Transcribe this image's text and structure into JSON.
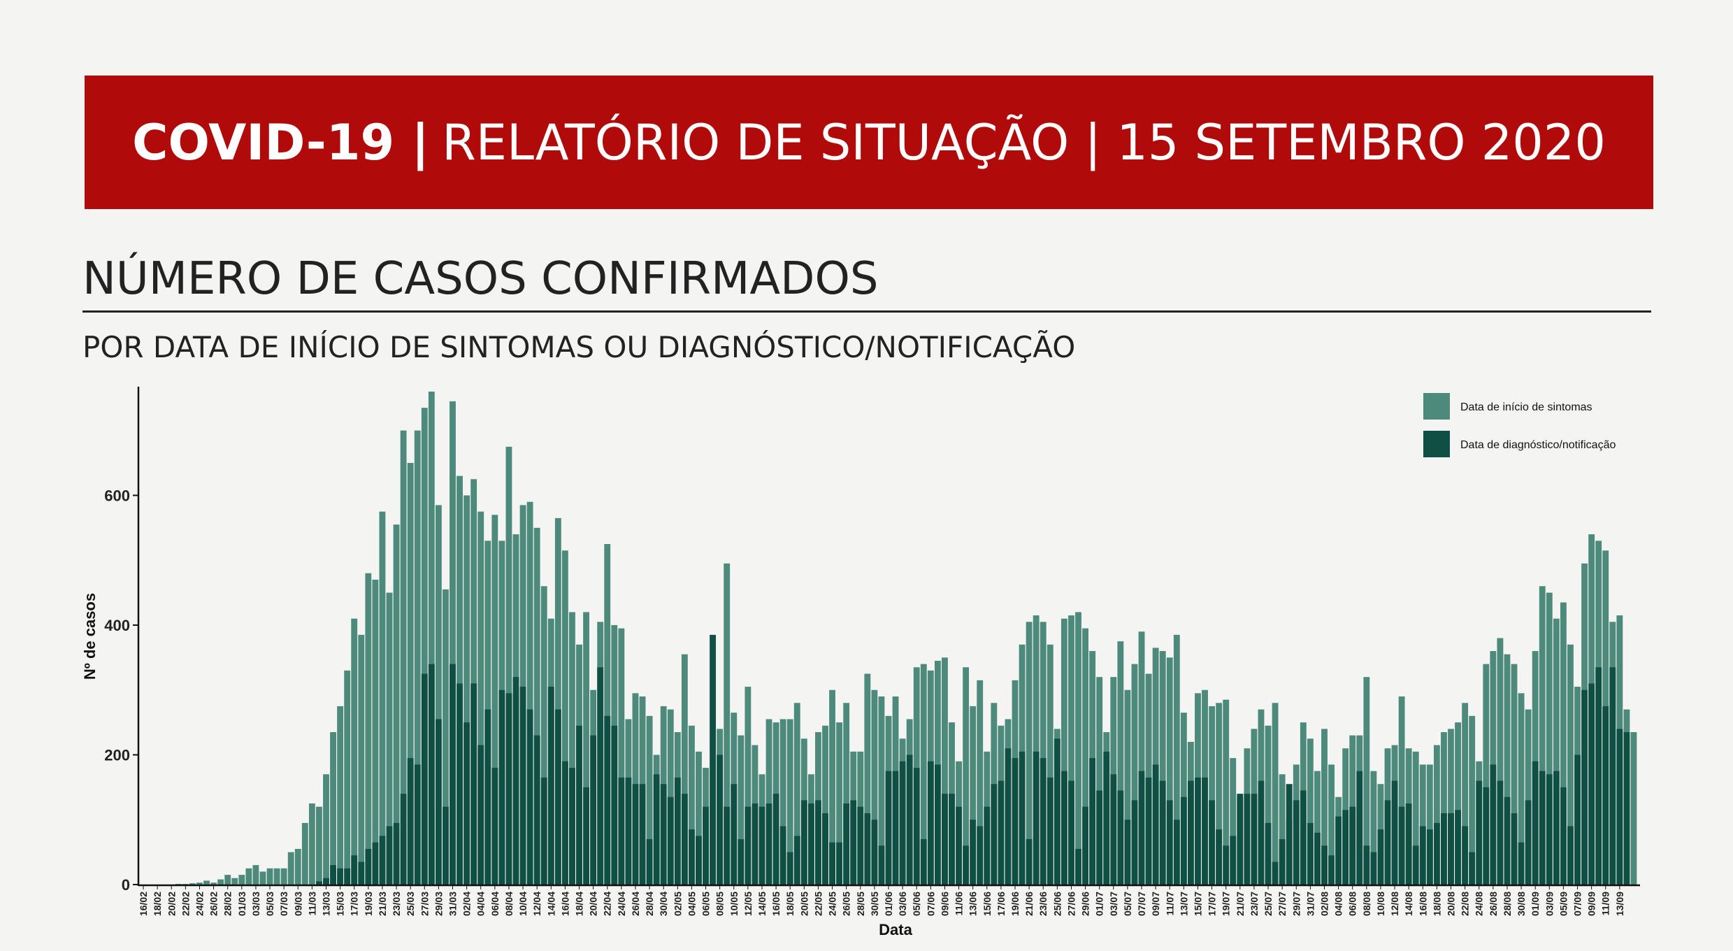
{
  "banner": {
    "bold": "COVID-19 |",
    "rest": "RELATÓRIO DE SITUAÇÃO | 15 SETEMBRO 2020"
  },
  "section": {
    "title": "NÚMERO DE CASOS CONFIRMADOS",
    "subtitle": "POR DATA DE INÍCIO DE SINTOMAS OU DIAGNÓSTICO/NOTIFICAÇÃO"
  },
  "chart_data": {
    "type": "bar",
    "stacked": false,
    "xlabel": "Data",
    "ylabel": "Nº de casos",
    "ylim": [
      0,
      760
    ],
    "yticks": [
      0,
      200,
      400,
      600
    ],
    "legend_position": "top-right",
    "date_ticks": [
      "16/02",
      "18/02",
      "20/02",
      "22/02",
      "24/02",
      "26/02",
      "28/02",
      "01/03",
      "03/03",
      "05/03",
      "07/03",
      "09/03",
      "11/03",
      "13/03",
      "15/03",
      "17/03",
      "19/03",
      "21/03",
      "23/03",
      "25/03",
      "27/03",
      "29/03",
      "31/03",
      "02/04",
      "04/04",
      "06/04",
      "08/04",
      "10/04",
      "12/04",
      "14/04",
      "16/04",
      "18/04",
      "20/04",
      "22/04",
      "24/04",
      "26/04",
      "28/04",
      "30/04",
      "02/05",
      "04/05",
      "06/05",
      "08/05",
      "10/05",
      "12/05",
      "14/05",
      "16/05",
      "18/05",
      "20/05",
      "22/05",
      "24/05",
      "26/05",
      "28/05",
      "30/05",
      "01/06",
      "03/06",
      "05/06",
      "07/06",
      "09/06",
      "11/06",
      "13/06",
      "15/06",
      "17/06",
      "19/06",
      "21/06",
      "23/06",
      "25/06",
      "27/06",
      "29/06",
      "01/07",
      "03/07",
      "05/07",
      "07/07",
      "09/07",
      "11/07",
      "13/07",
      "15/07",
      "17/07",
      "19/07",
      "21/07",
      "23/07",
      "25/07",
      "27/07",
      "29/07",
      "31/07",
      "02/08",
      "04/08",
      "06/08",
      "08/08",
      "10/08",
      "12/08",
      "14/08",
      "16/08",
      "18/08",
      "20/08",
      "22/08",
      "24/08",
      "26/08",
      "28/08",
      "30/08",
      "01/09",
      "03/09",
      "05/09",
      "07/09",
      "09/09",
      "11/09",
      "13/09"
    ],
    "series": [
      {
        "name": "Data de início de sintomas",
        "color": "#4e8a7b",
        "values": [
          0,
          0,
          0,
          0,
          0,
          1,
          1,
          2,
          3,
          6,
          3,
          8,
          15,
          10,
          15,
          25,
          30,
          20,
          25,
          25,
          25,
          50,
          55,
          95,
          125,
          120,
          170,
          235,
          275,
          330,
          410,
          385,
          480,
          470,
          575,
          450,
          555,
          700,
          650,
          700,
          735,
          760,
          585,
          455,
          745,
          630,
          600,
          625,
          575,
          530,
          570,
          530,
          675,
          540,
          585,
          590,
          550,
          460,
          410,
          565,
          515,
          420,
          370,
          420,
          300,
          405,
          525,
          400,
          395,
          255,
          295,
          290,
          260,
          200,
          275,
          270,
          235,
          355,
          245,
          205,
          180,
          175,
          240,
          495,
          265,
          230,
          305,
          215,
          170,
          255,
          250,
          255,
          255,
          280,
          225,
          170,
          235,
          245,
          300,
          250,
          280,
          205,
          205,
          325,
          300,
          290,
          260,
          290,
          225,
          255,
          335,
          340,
          330,
          345,
          350,
          250,
          190,
          335,
          275,
          315,
          205,
          280,
          245,
          255,
          315,
          370,
          405,
          415,
          405,
          370,
          240,
          410,
          415,
          420,
          395,
          360,
          320,
          235,
          320,
          375,
          300,
          340,
          390,
          325,
          365,
          360,
          350,
          385,
          265,
          220,
          295,
          300,
          275,
          280,
          285,
          195,
          135,
          210,
          240,
          270,
          245,
          280,
          170,
          100,
          185,
          250,
          225,
          175,
          240,
          185,
          135,
          210,
          230,
          230,
          320,
          175,
          155,
          210,
          215,
          290,
          210,
          205,
          185,
          185,
          215,
          235,
          240,
          250,
          280,
          260,
          190,
          340,
          360,
          380,
          355,
          340,
          295,
          270,
          360,
          460,
          450,
          410,
          435,
          370,
          305,
          495,
          540,
          530,
          515,
          405,
          415,
          270,
          235
        ]
      },
      {
        "name": "Data de diagnóstico/notificação",
        "color": "#0f4f44",
        "values": [
          0,
          0,
          0,
          0,
          0,
          0,
          0,
          0,
          0,
          0,
          0,
          0,
          0,
          0,
          0,
          0,
          0,
          0,
          0,
          0,
          0,
          0,
          0,
          0,
          0,
          5,
          10,
          30,
          25,
          25,
          45,
          35,
          55,
          65,
          75,
          90,
          95,
          140,
          195,
          185,
          325,
          340,
          255,
          120,
          340,
          310,
          250,
          310,
          215,
          270,
          180,
          300,
          295,
          320,
          305,
          270,
          230,
          165,
          305,
          270,
          190,
          180,
          245,
          150,
          230,
          335,
          260,
          245,
          165,
          165,
          155,
          155,
          70,
          170,
          155,
          135,
          165,
          140,
          85,
          75,
          120,
          385,
          200,
          120,
          155,
          70,
          120,
          125,
          120,
          125,
          140,
          90,
          50,
          75,
          130,
          125,
          130,
          110,
          65,
          65,
          125,
          130,
          120,
          110,
          100,
          60,
          175,
          175,
          190,
          200,
          180,
          70,
          190,
          185,
          140,
          140,
          120,
          60,
          100,
          90,
          120,
          155,
          160,
          210,
          195,
          205,
          70,
          205,
          195,
          165,
          225,
          175,
          160,
          55,
          120,
          195,
          145,
          205,
          170,
          145,
          100,
          130,
          175,
          165,
          185,
          160,
          130,
          100,
          135,
          160,
          165,
          165,
          130,
          85,
          60,
          75,
          140,
          140,
          140,
          160,
          95,
          35,
          70,
          155,
          130,
          145,
          95,
          80,
          60,
          45,
          105,
          115,
          120,
          175,
          60,
          50,
          85,
          130,
          160,
          120,
          125,
          60,
          90,
          85,
          95,
          110,
          110,
          115,
          90,
          50,
          160,
          150,
          185,
          160,
          135,
          110,
          65,
          130,
          190,
          175,
          170,
          175,
          150,
          90,
          200,
          300,
          310,
          335,
          275,
          335,
          240,
          235
        ]
      }
    ]
  }
}
